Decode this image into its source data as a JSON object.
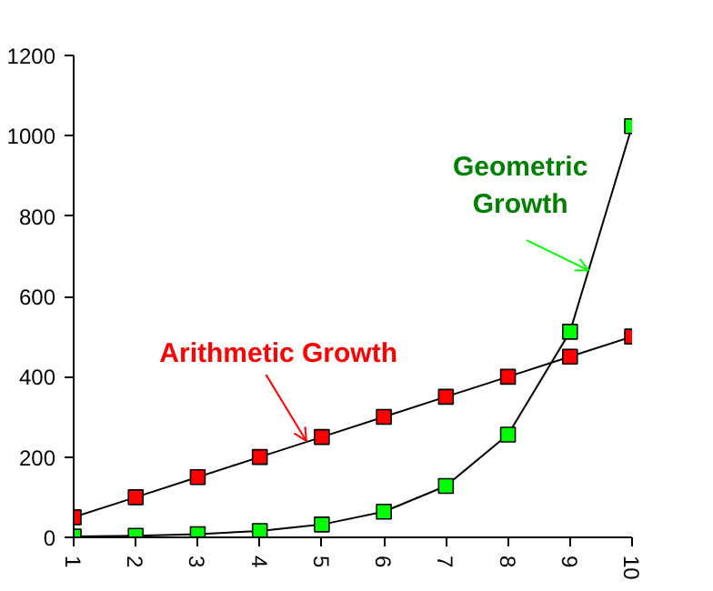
{
  "chart_data": {
    "type": "line",
    "x": [
      1,
      2,
      3,
      4,
      5,
      6,
      7,
      8,
      9,
      10
    ],
    "series": [
      {
        "color": "#ff0000",
        "values": [
          50,
          100,
          150,
          200,
          250,
          300,
          350,
          400,
          450,
          500
        ]
      },
      {
        "color": "#00ff00",
        "values": [
          2,
          4,
          8,
          16,
          32,
          64,
          128,
          256,
          512,
          1024
        ]
      }
    ],
    "annotations": [
      {
        "text": "Arithmetic Growth",
        "x": 4.75,
        "y": 240
      },
      {
        "text": "Geometric Growth",
        "x": 9.3,
        "y": 665
      }
    ],
    "xlim": [
      1,
      10
    ],
    "xticks": [
      1,
      2,
      3,
      4,
      5,
      6,
      7,
      8,
      9,
      10
    ],
    "ylim": [
      0,
      1200
    ],
    "yticks": [
      0,
      200,
      400,
      600,
      800,
      1000,
      1200
    ],
    "grid": false,
    "marker": "square",
    "line_style": "solid"
  }
}
